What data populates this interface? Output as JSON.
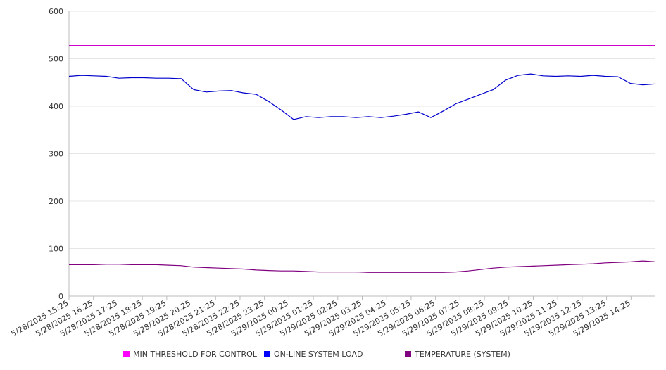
{
  "chart_data": {
    "type": "line",
    "title": "",
    "xlabel": "",
    "ylabel": "",
    "ylim": [
      0,
      600
    ],
    "yticks": [
      "0",
      "100",
      "200",
      "300",
      "400",
      "500",
      "600"
    ],
    "grid": true,
    "legend_position": "bottom",
    "x_tick_labels": [
      "5/28/2025 15:25",
      "5/28/2025 16:25",
      "5/28/2025 17:25",
      "5/28/2025 18:25",
      "5/28/2025 19:25",
      "5/28/2025 20:25",
      "5/28/2025 21:25",
      "5/28/2025 22:25",
      "5/28/2025 23:25",
      "5/29/2025 00:25",
      "5/29/2025 01:25",
      "5/29/2025 02:25",
      "5/29/2025 03:25",
      "5/29/2025 04:25",
      "5/29/2025 05:25",
      "5/29/2025 06:25",
      "5/29/2025 07:25",
      "5/29/2025 08:25",
      "5/29/2025 09:25",
      "5/29/2025 10:25",
      "5/29/2025 11:25",
      "5/29/2025 12:25",
      "5/29/2025 13:25",
      "5/29/2025 14:25"
    ],
    "x": [
      "5/28/2025 15:25",
      "5/28/2025 15:55",
      "5/28/2025 16:25",
      "5/28/2025 16:55",
      "5/28/2025 17:25",
      "5/28/2025 17:55",
      "5/28/2025 18:25",
      "5/28/2025 18:55",
      "5/28/2025 19:25",
      "5/28/2025 19:55",
      "5/28/2025 20:25",
      "5/28/2025 20:55",
      "5/28/2025 21:25",
      "5/28/2025 21:55",
      "5/28/2025 22:25",
      "5/28/2025 22:55",
      "5/28/2025 23:25",
      "5/28/2025 23:55",
      "5/29/2025 00:25",
      "5/29/2025 00:55",
      "5/29/2025 01:25",
      "5/29/2025 01:55",
      "5/29/2025 02:25",
      "5/29/2025 02:55",
      "5/29/2025 03:25",
      "5/29/2025 03:55",
      "5/29/2025 04:25",
      "5/29/2025 04:55",
      "5/29/2025 05:25",
      "5/29/2025 05:55",
      "5/29/2025 06:25",
      "5/29/2025 06:55",
      "5/29/2025 07:25",
      "5/29/2025 07:55",
      "5/29/2025 08:25",
      "5/29/2025 08:55",
      "5/29/2025 09:25",
      "5/29/2025 09:55",
      "5/29/2025 10:25",
      "5/29/2025 10:55",
      "5/29/2025 11:25",
      "5/29/2025 11:55",
      "5/29/2025 12:25",
      "5/29/2025 12:55",
      "5/29/2025 13:25",
      "5/29/2025 13:55",
      "5/29/2025 14:25",
      "5/29/2025 14:55"
    ],
    "series": [
      {
        "name": "MIN THRESHOLD FOR CONTROL",
        "color": "#cc00cc",
        "values": [
          528,
          528,
          528,
          528,
          528,
          528,
          528,
          528,
          528,
          528,
          528,
          528,
          528,
          528,
          528,
          528,
          528,
          528,
          528,
          528,
          528,
          528,
          528,
          528,
          528,
          528,
          528,
          528,
          528,
          528,
          528,
          528,
          528,
          528,
          528,
          528,
          528,
          528,
          528,
          528,
          528,
          528,
          528,
          528,
          528,
          528,
          528,
          528
        ]
      },
      {
        "name": "ON-LINE SYSTEM LOAD",
        "color": "#0000cc",
        "values": [
          463,
          465,
          464,
          463,
          459,
          460,
          460,
          459,
          459,
          458,
          435,
          430,
          432,
          433,
          428,
          425,
          410,
          392,
          372,
          378,
          376,
          378,
          378,
          376,
          378,
          376,
          379,
          383,
          388,
          376,
          390,
          405,
          415,
          425,
          435,
          455,
          465,
          468,
          464,
          463,
          464,
          463,
          465,
          463,
          462,
          448,
          445,
          447
        ]
      },
      {
        "name": "TEMPERATURE (SYSTEM)",
        "color": "#800080",
        "values": [
          66,
          66,
          66,
          67,
          67,
          66,
          66,
          66,
          65,
          64,
          61,
          60,
          59,
          58,
          57,
          55,
          54,
          53,
          53,
          52,
          51,
          51,
          51,
          51,
          50,
          50,
          50,
          50,
          50,
          50,
          50,
          51,
          53,
          56,
          59,
          61,
          62,
          63,
          64,
          65,
          66,
          67,
          68,
          70,
          71,
          72,
          74,
          72
        ]
      }
    ]
  }
}
